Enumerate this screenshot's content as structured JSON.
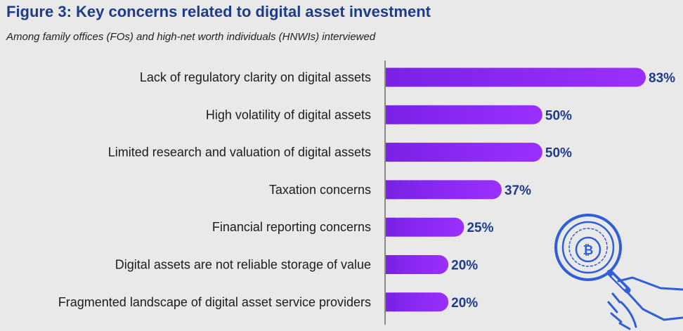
{
  "title": "Figure 3: Key concerns related to digital asset investment",
  "subtitle": "Among family offices (FOs) and high-net worth individuals (HNWIs) interviewed",
  "colors": {
    "bar_start": "#7a22e6",
    "bar_end": "#9b30ff",
    "value_text": "#1f3c88",
    "icon": "#2f5fd6"
  },
  "icon": "magnifier-bitcoin-icon",
  "chart_data": {
    "type": "bar",
    "orientation": "horizontal",
    "title": "Figure 3: Key concerns related to digital asset investment",
    "subtitle": "Among family offices (FOs) and high-net worth individuals (HNWIs) interviewed",
    "categories": [
      "Lack of regulatory clarity on digital assets",
      "High volatility of digital assets",
      "Limited research and valuation of digital assets",
      "Taxation concerns",
      "Financial reporting concerns",
      "Digital assets are not reliable storage of value",
      "Fragmented landscape of digital asset service providers"
    ],
    "values": [
      83,
      50,
      50,
      37,
      25,
      20,
      20
    ],
    "value_labels": [
      "83%",
      "50%",
      "50%",
      "37%",
      "25%",
      "20%",
      "20%"
    ],
    "unit": "%",
    "xlim": [
      0,
      100
    ],
    "grid": false,
    "legend": "none"
  }
}
